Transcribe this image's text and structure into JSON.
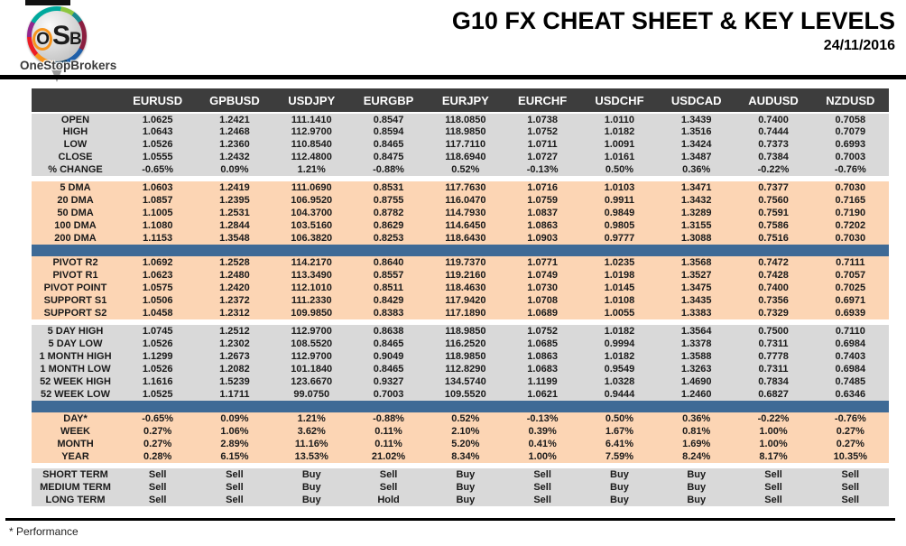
{
  "page": {
    "title": "G10 FX CHEAT SHEET & KEY LEVELS",
    "date": "24/11/2016",
    "footnote": "* Performance"
  },
  "logo": {
    "osb_o": "O",
    "osb_s": "S",
    "osb_b": "B",
    "brand": "OneStopBrokers"
  },
  "colors": {
    "header_bg": "#3d3d3d",
    "gray_band": "#d9d9d9",
    "peach_band": "#fcd5b4",
    "blue_divider": "#3e6a96",
    "buy": "#2fb26a",
    "sell": "#f04343",
    "hold": "#41688f",
    "pivot_resistance_label": "#00a550",
    "pivot_point_label": "#20365c",
    "support_label": "#e51717"
  },
  "table": {
    "columns": [
      "EURUSD",
      "GPBUSD",
      "USDJPY",
      "EURGBP",
      "EURJPY",
      "EURCHF",
      "USDCHF",
      "USDCAD",
      "AUDUSD",
      "NZDUSD"
    ],
    "sections": [
      {
        "name": "daily-ohlc",
        "band": "gray",
        "separator_before": null,
        "rows": [
          {
            "label": "OPEN",
            "values": [
              "1.0625",
              "1.2421",
              "111.1410",
              "0.8547",
              "118.0850",
              "1.0738",
              "1.0110",
              "1.3439",
              "0.7400",
              "0.7058"
            ]
          },
          {
            "label": "HIGH",
            "values": [
              "1.0643",
              "1.2468",
              "112.9700",
              "0.8594",
              "118.9850",
              "1.0752",
              "1.0182",
              "1.3516",
              "0.7444",
              "0.7079"
            ]
          },
          {
            "label": "LOW",
            "values": [
              "1.0526",
              "1.2360",
              "110.8540",
              "0.8465",
              "117.7110",
              "1.0711",
              "1.0091",
              "1.3424",
              "0.7373",
              "0.6993"
            ]
          },
          {
            "label": "CLOSE",
            "values": [
              "1.0555",
              "1.2432",
              "112.4800",
              "0.8475",
              "118.6940",
              "1.0727",
              "1.0161",
              "1.3487",
              "0.7384",
              "0.7003"
            ]
          },
          {
            "label": "% CHANGE",
            "values": [
              "-0.65%",
              "0.09%",
              "1.21%",
              "-0.88%",
              "0.52%",
              "-0.13%",
              "0.50%",
              "0.36%",
              "-0.22%",
              "-0.76%"
            ]
          }
        ]
      },
      {
        "name": "moving-averages",
        "band": "peach",
        "separator_before": "gap",
        "rows": [
          {
            "label": "5 DMA",
            "values": [
              "1.0603",
              "1.2419",
              "111.0690",
              "0.8531",
              "117.7630",
              "1.0716",
              "1.0103",
              "1.3471",
              "0.7377",
              "0.7030"
            ]
          },
          {
            "label": "20 DMA",
            "values": [
              "1.0857",
              "1.2395",
              "106.9520",
              "0.8755",
              "116.0470",
              "1.0759",
              "0.9911",
              "1.3432",
              "0.7560",
              "0.7165"
            ]
          },
          {
            "label": "50 DMA",
            "values": [
              "1.1005",
              "1.2531",
              "104.3700",
              "0.8782",
              "114.7930",
              "1.0837",
              "0.9849",
              "1.3289",
              "0.7591",
              "0.7190"
            ]
          },
          {
            "label": "100 DMA",
            "values": [
              "1.1080",
              "1.2844",
              "103.5160",
              "0.8629",
              "114.6450",
              "1.0863",
              "0.9805",
              "1.3155",
              "0.7586",
              "0.7202"
            ]
          },
          {
            "label": "200 DMA",
            "values": [
              "1.1153",
              "1.3548",
              "106.3820",
              "0.8253",
              "118.6430",
              "1.0903",
              "0.9777",
              "1.3088",
              "0.7516",
              "0.7030"
            ]
          }
        ]
      },
      {
        "name": "pivots",
        "band": "peach",
        "separator_before": "blue",
        "rows": [
          {
            "label": "PIVOT R2",
            "label_style": "green",
            "values": [
              "1.0692",
              "1.2528",
              "114.2170",
              "0.8640",
              "119.7370",
              "1.0771",
              "1.0235",
              "1.3568",
              "0.7472",
              "0.7111"
            ]
          },
          {
            "label": "PIVOT R1",
            "label_style": "green",
            "values": [
              "1.0623",
              "1.2480",
              "113.3490",
              "0.8557",
              "119.2160",
              "1.0749",
              "1.0198",
              "1.3527",
              "0.7428",
              "0.7057"
            ]
          },
          {
            "label": "PIVOT POINT",
            "label_style": "navy",
            "values": [
              "1.0575",
              "1.2420",
              "112.1010",
              "0.8511",
              "118.4630",
              "1.0730",
              "1.0145",
              "1.3475",
              "0.7400",
              "0.7025"
            ]
          },
          {
            "label": "SUPPORT S1",
            "label_style": "red",
            "values": [
              "1.0506",
              "1.2372",
              "111.2330",
              "0.8429",
              "117.9420",
              "1.0708",
              "1.0108",
              "1.3435",
              "0.7356",
              "0.6971"
            ]
          },
          {
            "label": "SUPPORT S2",
            "label_style": "red",
            "values": [
              "1.0458",
              "1.2312",
              "109.9850",
              "0.8383",
              "117.1890",
              "1.0689",
              "1.0055",
              "1.3383",
              "0.7329",
              "0.6939"
            ]
          }
        ]
      },
      {
        "name": "ranges",
        "band": "gray",
        "separator_before": "gap",
        "rows": [
          {
            "label": "5 DAY HIGH",
            "values": [
              "1.0745",
              "1.2512",
              "112.9700",
              "0.8638",
              "118.9850",
              "1.0752",
              "1.0182",
              "1.3564",
              "0.7500",
              "0.7110"
            ]
          },
          {
            "label": "5 DAY LOW",
            "values": [
              "1.0526",
              "1.2302",
              "108.5520",
              "0.8465",
              "116.2520",
              "1.0685",
              "0.9994",
              "1.3378",
              "0.7311",
              "0.6984"
            ]
          },
          {
            "label": "1 MONTH HIGH",
            "values": [
              "1.1299",
              "1.2673",
              "112.9700",
              "0.9049",
              "118.9850",
              "1.0863",
              "1.0182",
              "1.3588",
              "0.7778",
              "0.7403"
            ]
          },
          {
            "label": "1 MONTH LOW",
            "values": [
              "1.0526",
              "1.2082",
              "101.1840",
              "0.8465",
              "112.8290",
              "1.0683",
              "0.9549",
              "1.3263",
              "0.7311",
              "0.6984"
            ]
          },
          {
            "label": "52 WEEK HIGH",
            "values": [
              "1.1616",
              "1.5239",
              "123.6670",
              "0.9327",
              "134.5740",
              "1.1199",
              "1.0328",
              "1.4690",
              "0.7834",
              "0.7485"
            ]
          },
          {
            "label": "52 WEEK LOW",
            "values": [
              "1.0525",
              "1.1711",
              "99.0750",
              "0.7003",
              "109.5520",
              "1.0621",
              "0.9444",
              "1.2460",
              "0.6827",
              "0.6346"
            ]
          }
        ]
      },
      {
        "name": "performance",
        "band": "peach",
        "separator_before": "blue",
        "rows": [
          {
            "label": "DAY*",
            "values": [
              "-0.65%",
              "0.09%",
              "1.21%",
              "-0.88%",
              "0.52%",
              "-0.13%",
              "0.50%",
              "0.36%",
              "-0.22%",
              "-0.76%"
            ]
          },
          {
            "label": "WEEK",
            "values": [
              "0.27%",
              "1.06%",
              "3.62%",
              "0.11%",
              "2.10%",
              "0.39%",
              "1.67%",
              "0.81%",
              "1.00%",
              "0.27%"
            ]
          },
          {
            "label": "MONTH",
            "values": [
              "0.27%",
              "2.89%",
              "11.16%",
              "0.11%",
              "5.20%",
              "0.41%",
              "6.41%",
              "1.69%",
              "1.00%",
              "0.27%"
            ]
          },
          {
            "label": "YEAR",
            "values": [
              "0.28%",
              "6.15%",
              "13.53%",
              "21.02%",
              "8.34%",
              "1.00%",
              "7.59%",
              "8.24%",
              "8.17%",
              "10.35%"
            ]
          }
        ]
      },
      {
        "name": "signals",
        "band": "gray",
        "separator_before": "gap",
        "signal_row": true,
        "rows": [
          {
            "label": "SHORT TERM",
            "values": [
              "Sell",
              "Sell",
              "Buy",
              "Sell",
              "Buy",
              "Sell",
              "Buy",
              "Buy",
              "Sell",
              "Sell"
            ]
          },
          {
            "label": "MEDIUM TERM",
            "values": [
              "Sell",
              "Sell",
              "Buy",
              "Sell",
              "Buy",
              "Sell",
              "Buy",
              "Buy",
              "Sell",
              "Sell"
            ]
          },
          {
            "label": "LONG TERM",
            "values": [
              "Sell",
              "Sell",
              "Buy",
              "Hold",
              "Buy",
              "Sell",
              "Buy",
              "Buy",
              "Sell",
              "Sell"
            ]
          }
        ]
      }
    ]
  }
}
